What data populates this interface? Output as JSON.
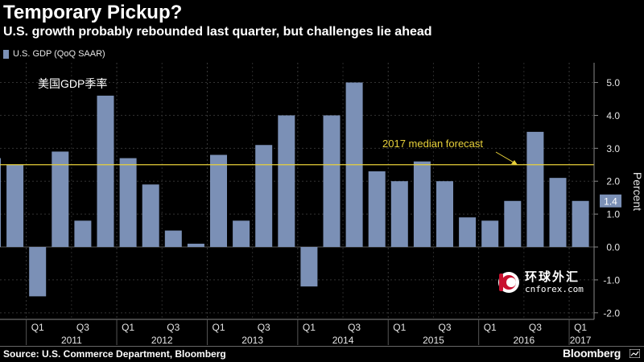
{
  "header": {
    "title": "Temporary Pickup?",
    "subtitle": "U.S. growth probably rebounded last quarter, but challenges lie ahead"
  },
  "legend": {
    "label": "U.S. GDP (QoQ SAAR)"
  },
  "chinese_label": "美国GDP季率",
  "footer": {
    "source": "Source: U.S. Commerce Department, Bloomberg",
    "brand": "Bloomberg"
  },
  "watermark": {
    "cn": "环球外汇",
    "en": "cnforex.com"
  },
  "chart_data": {
    "type": "bar",
    "categories": [
      "2010 Q3",
      "2010 Q4",
      "2011 Q1",
      "2011 Q2",
      "2011 Q3",
      "2011 Q4",
      "2012 Q1",
      "2012 Q2",
      "2012 Q3",
      "2012 Q4",
      "2013 Q1",
      "2013 Q2",
      "2013 Q3",
      "2013 Q4",
      "2014 Q1",
      "2014 Q2",
      "2014 Q3",
      "2014 Q4",
      "2015 Q1",
      "2015 Q2",
      "2015 Q3",
      "2015 Q4",
      "2016 Q1",
      "2016 Q2",
      "2016 Q3",
      "2016 Q4",
      "2017 Q1"
    ],
    "values": [
      2.7,
      2.5,
      -1.5,
      2.9,
      0.8,
      4.6,
      2.7,
      1.9,
      0.5,
      0.1,
      2.8,
      0.8,
      3.1,
      4.0,
      -1.2,
      4.0,
      5.0,
      2.3,
      2.0,
      2.6,
      2.0,
      0.9,
      0.8,
      1.4,
      3.5,
      2.1,
      1.4
    ],
    "series_name": "U.S. GDP (QoQ SAAR)",
    "color": "#7b90b6",
    "ylabel": "Percent",
    "ylim": [
      -2.2,
      5.6
    ],
    "yticks": [
      -2.0,
      -1.0,
      0.0,
      1.0,
      2.0,
      3.0,
      4.0,
      5.0
    ],
    "ytick_labels": [
      "-2.0",
      "-1.0",
      "0.0",
      "1.0",
      "2.0",
      "3.0",
      "4.0",
      "5.0"
    ],
    "xtick_labels": [
      "Q1",
      "Q3",
      "Q1",
      "Q3",
      "Q1",
      "Q3",
      "Q1",
      "Q3",
      "Q1",
      "Q3",
      "Q1",
      "Q3",
      "Q1"
    ],
    "xtick_quarters": [
      2,
      4,
      6,
      8,
      10,
      12,
      14,
      16,
      18,
      20,
      22,
      24,
      26
    ],
    "year_labels": [
      "2011",
      "2012",
      "2013",
      "2014",
      "2015",
      "2016",
      "2017"
    ],
    "year_quarters": [
      3.5,
      7.5,
      11.5,
      15.5,
      19.5,
      23.5,
      26
    ],
    "reference_line": {
      "value": 2.5,
      "label": "2017 median forecast",
      "color": "#e8d13a"
    },
    "last_value_label": "1.4",
    "grid": true,
    "legend_position": "top-left"
  }
}
